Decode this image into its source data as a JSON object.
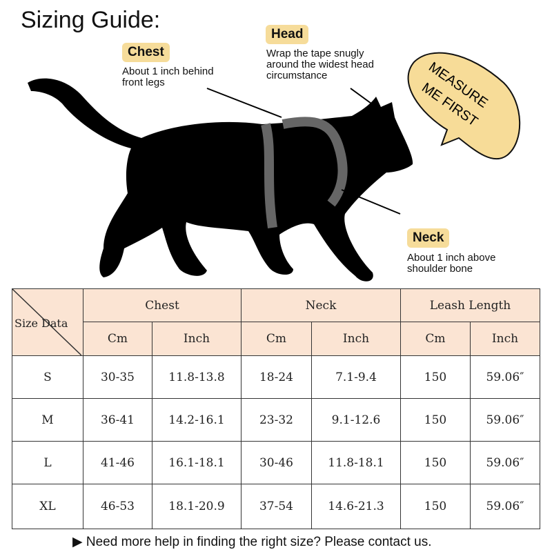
{
  "title": "Sizing Guide:",
  "labels": {
    "chest": {
      "tag": "Chest",
      "desc1": "About 1 inch behind",
      "desc2": "front legs"
    },
    "head": {
      "tag": "Head",
      "desc1": "Wrap the tape snugly",
      "desc2": "around the widest head",
      "desc3": "circumstance"
    },
    "neck": {
      "tag": "Neck",
      "desc1": "About 1 inch above",
      "desc2": "shoulder bone"
    }
  },
  "bubble": {
    "line1": "MEASURE",
    "line2": "ME FIRST",
    "color": "#f7dc98"
  },
  "table": {
    "corner": "Size Data",
    "groups": [
      "Chest",
      "Neck",
      "Leash Length"
    ],
    "units": [
      "Cm",
      "Inch",
      "Cm",
      "Inch",
      "Cm",
      "Inch"
    ],
    "rows": [
      [
        "S",
        "30-35",
        "11.8-13.8",
        "18-24",
        "7.1-9.4",
        "150",
        "59.06″"
      ],
      [
        "M",
        "36-41",
        "14.2-16.1",
        "23-32",
        "9.1-12.6",
        "150",
        "59.06″"
      ],
      [
        "L",
        "41-46",
        "16.1-18.1",
        "30-46",
        "11.8-18.1",
        "150",
        "59.06″"
      ],
      [
        "XL",
        "46-53",
        "18.1-20.9",
        "37-54",
        "14.6-21.3",
        "150",
        "59.06″"
      ]
    ]
  },
  "footer": "▶  Need more help in finding the right size? Please contact us."
}
